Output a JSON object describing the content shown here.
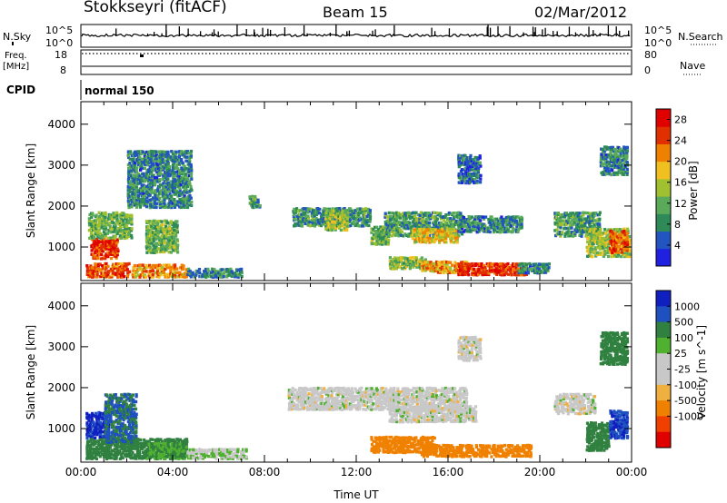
{
  "header": {
    "station": "Stokkseyri (fitACF)",
    "beam": "Beam 15",
    "date": "02/Mar/2012"
  },
  "top_panels": {
    "nsky_label": "N.Sky",
    "nsearch_label": "N.Search",
    "noise_ticks_left": [
      "10^5",
      "10^0"
    ],
    "noise_ticks_right": [
      "10^5",
      "10^0"
    ],
    "freq_label_line1": "Freq.",
    "freq_label_line2": "[MHz]",
    "freq_ticks": [
      "18",
      "8"
    ],
    "nave_label": "Nave",
    "nave_ticks": [
      "80",
      "0"
    ],
    "cpid_label": "CPID",
    "cpid_value": "normal 150"
  },
  "colors": {
    "power": [
      "#2020e0",
      "#2255c0",
      "#2e8b57",
      "#5aaa5a",
      "#a0c030",
      "#f0c020",
      "#f08000",
      "#e03000",
      "#e00000"
    ],
    "velocity": [
      "#e00000",
      "#f04000",
      "#f08000",
      "#f0b040",
      "#c8c8c8",
      "#c8c8c8",
      "#50b030",
      "#308040",
      "#1e50c0",
      "#1020c0"
    ]
  },
  "chart_data": [
    {
      "type": "heatmap",
      "title": "Power",
      "ylabel": "Slant Range [km]",
      "xlabel": "",
      "x_ticks": [
        "00:00",
        "04:00",
        "08:00",
        "12:00",
        "16:00",
        "20:00",
        "00:00"
      ],
      "y_ticks": [
        1000,
        2000,
        3000,
        4000
      ],
      "x_range_hours": [
        0,
        24
      ],
      "ylim": [
        180,
        4550
      ],
      "colorbar_label": "Power [dB]",
      "colorbar_ticks": [
        4,
        8,
        12,
        16,
        20,
        24,
        28
      ],
      "colorbar_range": [
        0,
        30
      ],
      "regions": [
        {
          "t": [
            0.2,
            2.1
          ],
          "r": [
            300,
            650
          ],
          "v": 24
        },
        {
          "t": [
            0.4,
            1.6
          ],
          "r": [
            750,
            1250
          ],
          "v": 26
        },
        {
          "t": [
            0.3,
            2.2
          ],
          "r": [
            1250,
            1900
          ],
          "v": 12
        },
        {
          "t": [
            2.2,
            4.6
          ],
          "r": [
            300,
            620
          ],
          "v": 20
        },
        {
          "t": [
            2.8,
            4.2
          ],
          "r": [
            900,
            1700
          ],
          "v": 12
        },
        {
          "t": [
            4.6,
            7.0
          ],
          "r": [
            300,
            520
          ],
          "v": 8
        },
        {
          "t": [
            2.0,
            4.8
          ],
          "r": [
            2000,
            3400
          ],
          "v": 8
        },
        {
          "t": [
            7.3,
            7.8
          ],
          "r": [
            2000,
            2300
          ],
          "v": 10
        },
        {
          "t": [
            9.2,
            12.6
          ],
          "r": [
            1550,
            2000
          ],
          "v": 9
        },
        {
          "t": [
            10.6,
            11.6
          ],
          "r": [
            1450,
            1950
          ],
          "v": 14
        },
        {
          "t": [
            12.6,
            13.4
          ],
          "r": [
            1100,
            1550
          ],
          "v": 12
        },
        {
          "t": [
            13.2,
            16.6
          ],
          "r": [
            1300,
            1900
          ],
          "v": 10
        },
        {
          "t": [
            14.4,
            16.4
          ],
          "r": [
            1150,
            1500
          ],
          "v": 18
        },
        {
          "t": [
            16.4,
            19.2
          ],
          "r": [
            1400,
            1800
          ],
          "v": 8
        },
        {
          "t": [
            13.4,
            15.0
          ],
          "r": [
            500,
            800
          ],
          "v": 14
        },
        {
          "t": [
            14.8,
            16.8
          ],
          "r": [
            400,
            700
          ],
          "v": 20
        },
        {
          "t": [
            16.4,
            19.4
          ],
          "r": [
            350,
            650
          ],
          "v": 26
        },
        {
          "t": [
            19.0,
            20.4
          ],
          "r": [
            400,
            650
          ],
          "v": 8
        },
        {
          "t": [
            16.4,
            17.4
          ],
          "r": [
            2600,
            3300
          ],
          "v": 6
        },
        {
          "t": [
            20.6,
            22.6
          ],
          "r": [
            1300,
            1900
          ],
          "v": 10
        },
        {
          "t": [
            22.0,
            23.9
          ],
          "r": [
            800,
            1500
          ],
          "v": 14
        },
        {
          "t": [
            23.0,
            23.8
          ],
          "r": [
            900,
            1450
          ],
          "v": 24
        },
        {
          "t": [
            22.6,
            23.8
          ],
          "r": [
            2800,
            3500
          ],
          "v": 8
        }
      ]
    },
    {
      "type": "heatmap",
      "title": "Velocity",
      "ylabel": "Slant Range [km]",
      "xlabel": "Time UT",
      "x_ticks": [
        "00:00",
        "04:00",
        "08:00",
        "12:00",
        "16:00",
        "20:00",
        "00:00"
      ],
      "y_ticks": [
        1000,
        2000,
        3000,
        4000
      ],
      "x_range_hours": [
        0,
        24
      ],
      "ylim": [
        180,
        4550
      ],
      "colorbar_label": "Velocity [m s^-1]",
      "colorbar_ticks": [
        "1000",
        "500",
        "100",
        "25",
        "-25",
        "-100",
        "-500",
        "-1000"
      ],
      "regions": [
        {
          "t": [
            0.2,
            1.2
          ],
          "r": [
            800,
            1450
          ],
          "v": 800
        },
        {
          "t": [
            0.2,
            4.6
          ],
          "r": [
            300,
            800
          ],
          "v": 150
        },
        {
          "t": [
            1.0,
            2.4
          ],
          "r": [
            700,
            1900
          ],
          "v": 300
        },
        {
          "t": [
            2.8,
            4.6
          ],
          "r": [
            300,
            700
          ],
          "v": 60
        },
        {
          "t": [
            4.6,
            7.2
          ],
          "r": [
            300,
            550
          ],
          "v": 20
        },
        {
          "t": [
            9.0,
            16.8
          ],
          "r": [
            1500,
            2050
          ],
          "v": 0
        },
        {
          "t": [
            13.4,
            17.2
          ],
          "r": [
            1200,
            1600
          ],
          "v": 0
        },
        {
          "t": [
            12.6,
            15.4
          ],
          "r": [
            450,
            850
          ],
          "v": -200
        },
        {
          "t": [
            14.8,
            19.6
          ],
          "r": [
            350,
            650
          ],
          "v": -150
        },
        {
          "t": [
            16.4,
            17.4
          ],
          "r": [
            2700,
            3300
          ],
          "v": 0
        },
        {
          "t": [
            20.6,
            22.4
          ],
          "r": [
            1400,
            1900
          ],
          "v": 0
        },
        {
          "t": [
            22.0,
            23.0
          ],
          "r": [
            500,
            1200
          ],
          "v": 200
        },
        {
          "t": [
            23.0,
            23.8
          ],
          "r": [
            800,
            1500
          ],
          "v": 600
        },
        {
          "t": [
            22.6,
            23.8
          ],
          "r": [
            2600,
            3400
          ],
          "v": 150
        }
      ]
    }
  ]
}
